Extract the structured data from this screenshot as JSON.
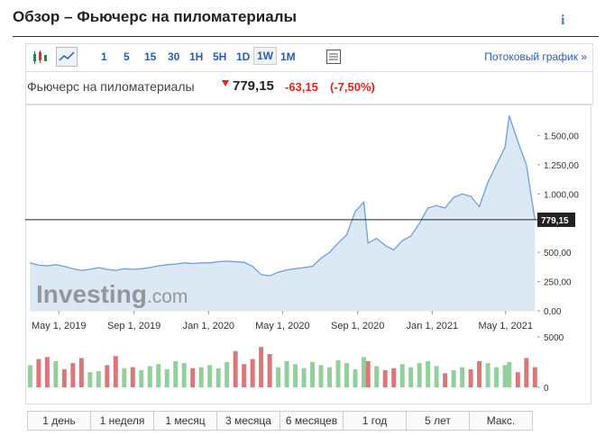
{
  "header": {
    "title": "Обзор – Фьючерс на пиломатериалы",
    "info_icon": "i"
  },
  "toolbar": {
    "intervals": [
      "1",
      "5",
      "15",
      "30",
      "1H",
      "5H",
      "1D",
      "1W",
      "1M"
    ],
    "selected": "1W",
    "stream_link": "Потоковый график »"
  },
  "quote": {
    "name": "Фьючерс на пиломатериалы",
    "price": "779,15",
    "change": "-63,15",
    "change_pct": "(-7,50%)"
  },
  "ranges": [
    "1 день",
    "1 неделя",
    "1 месяц",
    "3 месяца",
    "6 месяцев",
    "1 год",
    "5 лет",
    "Макс."
  ],
  "chart_data": {
    "type": "area",
    "watermark_brand": "Investing",
    "watermark_suffix": ".com",
    "x": [
      "2019-03-15",
      "2019-03-29",
      "2019-04-12",
      "2019-04-26",
      "2019-05-10",
      "2019-05-24",
      "2019-06-07",
      "2019-06-21",
      "2019-07-05",
      "2019-07-19",
      "2019-08-02",
      "2019-08-16",
      "2019-08-30",
      "2019-09-13",
      "2019-09-27",
      "2019-10-11",
      "2019-10-25",
      "2019-11-08",
      "2019-11-22",
      "2019-12-06",
      "2019-12-20",
      "2020-01-03",
      "2020-01-17",
      "2020-01-31",
      "2020-02-14",
      "2020-02-28",
      "2020-03-13",
      "2020-03-27",
      "2020-04-10",
      "2020-04-24",
      "2020-05-08",
      "2020-05-22",
      "2020-06-05",
      "2020-06-19",
      "2020-07-03",
      "2020-07-17",
      "2020-07-31",
      "2020-08-14",
      "2020-08-28",
      "2020-09-11",
      "2020-09-18",
      "2020-10-02",
      "2020-10-16",
      "2020-10-30",
      "2020-11-13",
      "2020-11-27",
      "2020-12-11",
      "2020-12-25",
      "2021-01-08",
      "2021-01-22",
      "2021-02-05",
      "2021-02-19",
      "2021-03-05",
      "2021-03-19",
      "2021-04-02",
      "2021-04-16",
      "2021-04-30",
      "2021-05-07",
      "2021-05-21",
      "2021-06-04",
      "2021-06-18"
    ],
    "price": [
      410,
      390,
      385,
      395,
      380,
      360,
      345,
      355,
      370,
      355,
      345,
      360,
      355,
      360,
      370,
      385,
      395,
      400,
      410,
      405,
      410,
      410,
      420,
      425,
      420,
      415,
      380,
      310,
      300,
      330,
      350,
      360,
      370,
      380,
      450,
      500,
      580,
      650,
      850,
      930,
      580,
      620,
      560,
      520,
      600,
      640,
      750,
      880,
      900,
      880,
      970,
      1000,
      980,
      890,
      1100,
      1250,
      1400,
      1670,
      1450,
      1250,
      779.15
    ],
    "volume": [
      2200,
      2800,
      3000,
      2600,
      1800,
      2400,
      2900,
      1500,
      1600,
      2200,
      3100,
      1900,
      2000,
      1700,
      2100,
      2300,
      1800,
      2600,
      2400,
      1900,
      2000,
      2200,
      1900,
      2500,
      3600,
      2300,
      2800,
      4000,
      3300,
      2000,
      2600,
      2300,
      1900,
      2500,
      2200,
      2000,
      2700,
      2400,
      1800,
      3000,
      2600,
      2100,
      1700,
      1900,
      2300,
      2000,
      2400,
      2600,
      2100,
      1400,
      1700,
      2000,
      1800,
      2600,
      2400,
      2000,
      2200,
      2500,
      1500,
      2900,
      2000
    ],
    "xlim": [
      "2019-03-10",
      "2021-06-22"
    ],
    "xticks": [
      {
        "value": "2019-05-01",
        "label": "May 1, 2019"
      },
      {
        "value": "2019-09-01",
        "label": "Sep 1, 2019"
      },
      {
        "value": "2020-01-01",
        "label": "Jan 1, 2020"
      },
      {
        "value": "2020-05-01",
        "label": "May 1, 2020"
      },
      {
        "value": "2020-09-01",
        "label": "Sep 1, 2020"
      },
      {
        "value": "2021-01-01",
        "label": "Jan 1, 2021"
      },
      {
        "value": "2021-05-01",
        "label": "May 1, 2021"
      }
    ],
    "ylim": [
      0,
      1750
    ],
    "yticks": [
      {
        "value": 0,
        "label": "0,00"
      },
      {
        "value": 250,
        "label": "250,00"
      },
      {
        "value": 500,
        "label": "500,00"
      },
      {
        "value": 1000,
        "label": "1.000,00"
      },
      {
        "value": 1250,
        "label": "1.250,00"
      },
      {
        "value": 1500,
        "label": "1.500,00"
      }
    ],
    "volume_ylim": [
      0,
      5000
    ],
    "volume_yticks": [
      0,
      5000
    ],
    "last_price": {
      "value": 779.15,
      "label": "779,15"
    },
    "line_color": "#6f9fd8",
    "fill_color": "#dde8f5",
    "up_color": "#93cf9b",
    "down_color": "#d9777a"
  }
}
